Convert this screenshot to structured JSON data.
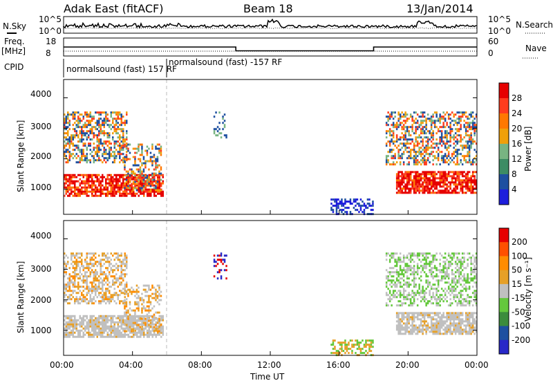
{
  "header": {
    "station": "Adak East (fitACF)",
    "beam": "Beam 18",
    "date": "13/Jan/2014"
  },
  "left_labels": {
    "nsky": "N.Sky",
    "freq": "Freq.",
    "freq_unit": "[MHz]",
    "cpid": "CPID"
  },
  "right_labels": {
    "nsearch": "N.Search",
    "nave": "Nave"
  },
  "noise_panel": {
    "ticks_left": [
      "10^5",
      "10^0"
    ],
    "ticks_right": [
      "10^5",
      "10^0"
    ]
  },
  "freq_panel": {
    "ticks_left": [
      "18",
      "8"
    ],
    "ticks_right": [
      "60",
      "0"
    ]
  },
  "cpid": {
    "segments": [
      {
        "label": "normalsound (fast) 157 RF"
      },
      {
        "label": "normalsound (fast) -157 RF"
      }
    ]
  },
  "x_axis": {
    "label": "Time UT",
    "ticks": [
      "00:00",
      "04:00",
      "08:00",
      "12:00",
      "16:00",
      "20:00",
      "00:00"
    ]
  },
  "power_panel": {
    "ylabel": "Slant Range [km]",
    "yticks": [
      "1000",
      "2000",
      "3000",
      "4000"
    ],
    "colorbar_label": "Power [dB]",
    "colorbar_ticks": [
      "4",
      "8",
      "12",
      "16",
      "20",
      "24",
      "28"
    ],
    "colors": [
      "#1e1edc",
      "#1e50a0",
      "#3c8c64",
      "#78b482",
      "#f0a00a",
      "#ff7800",
      "#ff3c1e",
      "#e60000"
    ]
  },
  "velocity_panel": {
    "ylabel": "Slant Range [km]",
    "yticks": [
      "1000",
      "2000",
      "3000",
      "4000"
    ],
    "colorbar_label": "Velocity [m s⁻¹]",
    "colorbar_ticks": [
      "200",
      "100",
      "50",
      "15",
      "-15",
      "-50",
      "-100",
      "-200"
    ],
    "colors": [
      "#2828c8",
      "#1e50a0",
      "#3c8c3c",
      "#64c83c",
      "#c0c0c0",
      "#e6a028",
      "#ff8c00",
      "#ff5000",
      "#e60000"
    ]
  },
  "chart_data": {
    "type": "heatmap",
    "x_range_hours": [
      0,
      24
    ],
    "y_range_km": [
      180,
      4600
    ],
    "freq_mhz": [
      {
        "start_hr": 0,
        "end_hr": 10,
        "value": 13
      },
      {
        "start_hr": 10,
        "end_hr": 18,
        "value": 10.5
      },
      {
        "start_hr": 18,
        "end_hr": 24,
        "value": 13
      }
    ],
    "cpid_segments": [
      {
        "start_hr": 0,
        "end_hr": 6,
        "label": "normalsound (fast) 157 RF"
      },
      {
        "start_hr": 6,
        "end_hr": 24,
        "label": "normalsound (fast) -157 RF"
      }
    ],
    "scatter_regions": [
      {
        "name": "morning-upper",
        "t0": 0,
        "t1": 3.7,
        "r0": 1900,
        "r1": 3550,
        "density": 0.55
      },
      {
        "name": "morning-lower-band",
        "t0": 0,
        "t1": 5.8,
        "r0": 800,
        "r1": 1500,
        "density": 0.8
      },
      {
        "name": "morning-tail",
        "t0": 3.5,
        "t1": 5.7,
        "r0": 1000,
        "r1": 2500,
        "density": 0.4
      },
      {
        "name": "gap-ticks-09",
        "t0": 8.7,
        "t1": 9.5,
        "r0": 2700,
        "r1": 3550,
        "density": 0.25
      },
      {
        "name": "near-range-noon",
        "t0": 15.5,
        "t1": 18.0,
        "r0": 200,
        "r1": 700,
        "density": 0.5
      },
      {
        "name": "evening-upper",
        "t0": 18.7,
        "t1": 24,
        "r0": 1800,
        "r1": 3550,
        "density": 0.5
      },
      {
        "name": "evening-band",
        "t0": 19.3,
        "t1": 24,
        "r0": 900,
        "r1": 1600,
        "density": 0.8
      }
    ],
    "vertical_marker_hr": 6
  }
}
